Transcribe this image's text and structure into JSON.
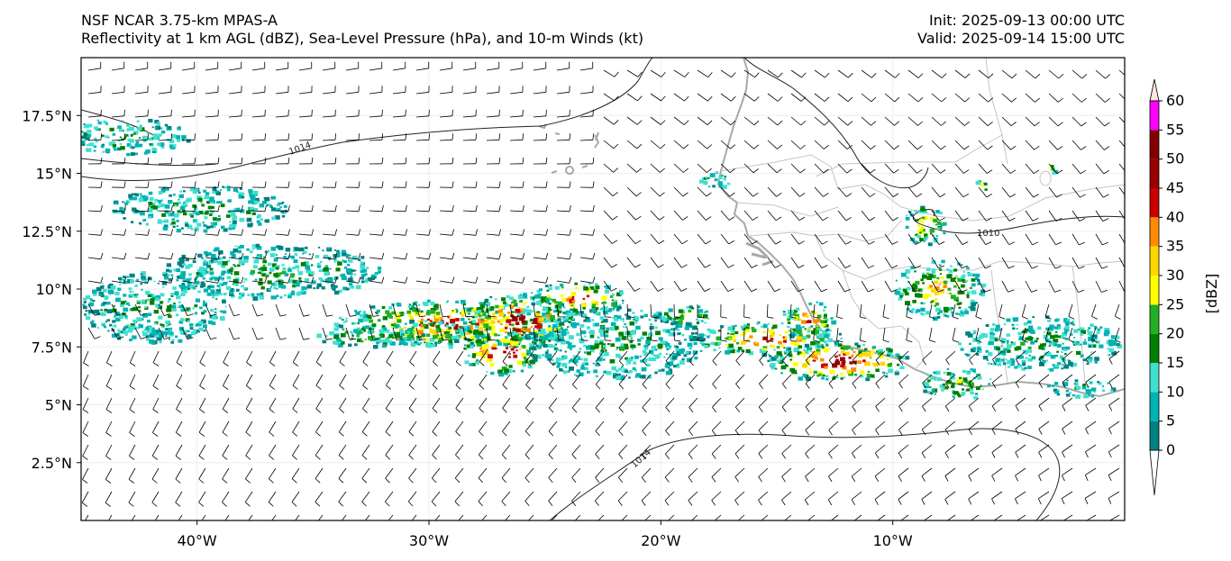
{
  "title": {
    "model": "NSF NCAR 3.75-km MPAS-A",
    "fields": "Reflectivity at 1 km AGL (dBZ), Sea-Level Pressure (hPa), and 10-m Winds (kt)",
    "init": "Init: 2025-09-13 00:00 UTC",
    "valid": "Valid: 2025-09-14 15:00 UTC"
  },
  "map": {
    "lon_range": [
      -45,
      0
    ],
    "lat_range": [
      0,
      20
    ],
    "lon_ticks": [
      "40°W",
      "30°W",
      "20°W",
      "10°W"
    ],
    "lat_ticks": [
      "2.5°N",
      "5°N",
      "7.5°N",
      "10°N",
      "12.5°N",
      "15°N",
      "17.5°N"
    ],
    "isobar_labels": [
      "1014",
      "1010",
      "1014"
    ]
  },
  "colorbar": {
    "label": "[dBZ]",
    "ticks": [
      "0",
      "5",
      "10",
      "15",
      "20",
      "25",
      "30",
      "35",
      "40",
      "45",
      "50",
      "55",
      "60"
    ],
    "colors": [
      "#008080",
      "#00b3b3",
      "#40e0d0",
      "#008000",
      "#22b022",
      "#ffff00",
      "#ffd700",
      "#ff8c00",
      "#cc0000",
      "#990000",
      "#800000",
      "#ff00ff",
      "#ffe4e1"
    ]
  }
}
